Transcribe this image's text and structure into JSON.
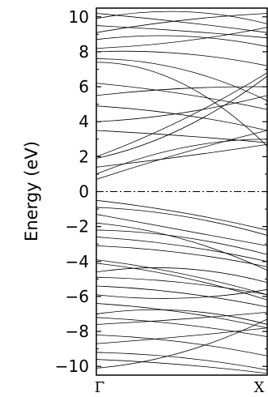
{
  "chart_data": {
    "type": "line",
    "title": "",
    "ylabel": "Energy (eV)",
    "xlabel": "",
    "x_tick_labels": [
      "Γ",
      "X"
    ],
    "x_range": [
      0,
      1
    ],
    "ylim": [
      -10.5,
      10.5
    ],
    "y_ticks": [
      -10,
      -8,
      -6,
      -4,
      -2,
      0,
      2,
      4,
      6,
      8,
      10
    ],
    "y_tick_labels": [
      "−10",
      "−8",
      "−6",
      "−4",
      "−2",
      "0",
      "2",
      "4",
      "6",
      "8",
      "10"
    ],
    "fermi_level": 0,
    "grid": false,
    "series": [
      {
        "x": [
          0,
          0.5,
          1
        ],
        "values": [
          -10.1,
          -9.2,
          -7.3
        ]
      },
      {
        "x": [
          0,
          0.5,
          1
        ],
        "values": [
          -9.6,
          -9.9,
          -10.4
        ]
      },
      {
        "x": [
          0,
          0.5,
          1
        ],
        "values": [
          -9.2,
          -9.5,
          -10.2
        ]
      },
      {
        "x": [
          0,
          0.5,
          1
        ],
        "values": [
          -8.7,
          -8.3,
          -7.8
        ]
      },
      {
        "x": [
          0,
          0.5,
          1
        ],
        "values": [
          -8.2,
          -8.6,
          -9.4
        ]
      },
      {
        "x": [
          0,
          0.5,
          1
        ],
        "values": [
          -7.6,
          -7.3,
          -6.9
        ]
      },
      {
        "x": [
          0,
          0.5,
          1
        ],
        "values": [
          -7.2,
          -7.6,
          -8.3
        ]
      },
      {
        "x": [
          0,
          0.5,
          1
        ],
        "values": [
          -7.0,
          -6.8,
          -7.6
        ]
      },
      {
        "x": [
          0,
          0.5,
          1
        ],
        "values": [
          -6.4,
          -6.9,
          -7.8
        ]
      },
      {
        "x": [
          0,
          0.5,
          1
        ],
        "values": [
          -5.9,
          -6.1,
          -5.6
        ]
      },
      {
        "x": [
          0,
          0.5,
          1
        ],
        "values": [
          -5.4,
          -5.8,
          -6.6
        ]
      },
      {
        "x": [
          0,
          0.5,
          1
        ],
        "values": [
          -4.9,
          -5.2,
          -5.9
        ]
      },
      {
        "x": [
          0,
          0.5,
          1
        ],
        "values": [
          -4.6,
          -4.4,
          -5.2
        ]
      },
      {
        "x": [
          0,
          0.5,
          1
        ],
        "values": [
          -4.1,
          -4.9,
          -6.2
        ]
      },
      {
        "x": [
          0,
          0.5,
          1
        ],
        "values": [
          -3.9,
          -4.7,
          -5.9
        ]
      },
      {
        "x": [
          0,
          0.5,
          1
        ],
        "values": [
          -3.1,
          -3.5,
          -4.3
        ]
      },
      {
        "x": [
          0,
          0.5,
          1
        ],
        "values": [
          -2.6,
          -3.1,
          -4.0
        ]
      },
      {
        "x": [
          0,
          0.5,
          1
        ],
        "values": [
          -2.2,
          -2.6,
          -3.6
        ]
      },
      {
        "x": [
          0,
          0.5,
          1
        ],
        "values": [
          -1.8,
          -2.7,
          -4.5
        ]
      },
      {
        "x": [
          0,
          0.5,
          1
        ],
        "values": [
          -1.3,
          -2.2,
          -3.1
        ]
      },
      {
        "x": [
          0,
          0.5,
          1
        ],
        "values": [
          -0.9,
          -1.4,
          -2.5
        ]
      },
      {
        "x": [
          0,
          0.5,
          1
        ],
        "values": [
          -0.5,
          -1.2,
          -2.2
        ]
      },
      {
        "x": [
          0,
          0.5,
          1
        ],
        "values": [
          0.7,
          2.2,
          3.5
        ]
      },
      {
        "x": [
          0,
          0.5,
          1
        ],
        "values": [
          1.0,
          2.5,
          3.0
        ]
      },
      {
        "x": [
          0,
          0.5,
          1
        ],
        "values": [
          1.4,
          2.0,
          2.7
        ]
      },
      {
        "x": [
          0,
          0.5,
          1
        ],
        "values": [
          1.9,
          3.6,
          6.6
        ]
      },
      {
        "x": [
          0,
          0.5,
          1
        ],
        "values": [
          2.0,
          4.1,
          6.8
        ]
      },
      {
        "x": [
          0,
          0.5,
          1
        ],
        "values": [
          3.5,
          3.2,
          2.8
        ]
      },
      {
        "x": [
          0,
          0.5,
          1
        ],
        "values": [
          4.0,
          4.5,
          5.5
        ]
      },
      {
        "x": [
          0,
          0.5,
          1
        ],
        "values": [
          4.9,
          4.4,
          3.5
        ]
      },
      {
        "x": [
          0,
          0.5,
          1
        ],
        "values": [
          5.5,
          5.9,
          6.0
        ]
      },
      {
        "x": [
          0,
          0.5,
          1
        ],
        "values": [
          6.2,
          5.6,
          4.7
        ]
      },
      {
        "x": [
          0,
          0.5,
          1
        ],
        "values": [
          7.4,
          6.2,
          2.6
        ]
      },
      {
        "x": [
          0,
          0.5,
          1
        ],
        "values": [
          7.6,
          7.0,
          5.2
        ]
      },
      {
        "x": [
          0,
          0.5,
          1
        ],
        "values": [
          8.0,
          7.9,
          7.2
        ]
      },
      {
        "x": [
          0,
          0.5,
          1
        ],
        "values": [
          8.2,
          8.6,
          9.4
        ]
      },
      {
        "x": [
          0,
          0.5,
          1
        ],
        "values": [
          8.7,
          8.9,
          8.3
        ]
      },
      {
        "x": [
          0,
          0.5,
          1
        ],
        "values": [
          9.1,
          9.8,
          10.2
        ]
      },
      {
        "x": [
          0,
          0.5,
          1
        ],
        "values": [
          9.5,
          9.2,
          8.8
        ]
      },
      {
        "x": [
          0,
          0.5,
          1
        ],
        "values": [
          9.9,
          10.3,
          9.6
        ]
      },
      {
        "x": [
          0,
          0.5,
          1
        ],
        "values": [
          10.2,
          9.7,
          9.1
        ]
      }
    ]
  }
}
